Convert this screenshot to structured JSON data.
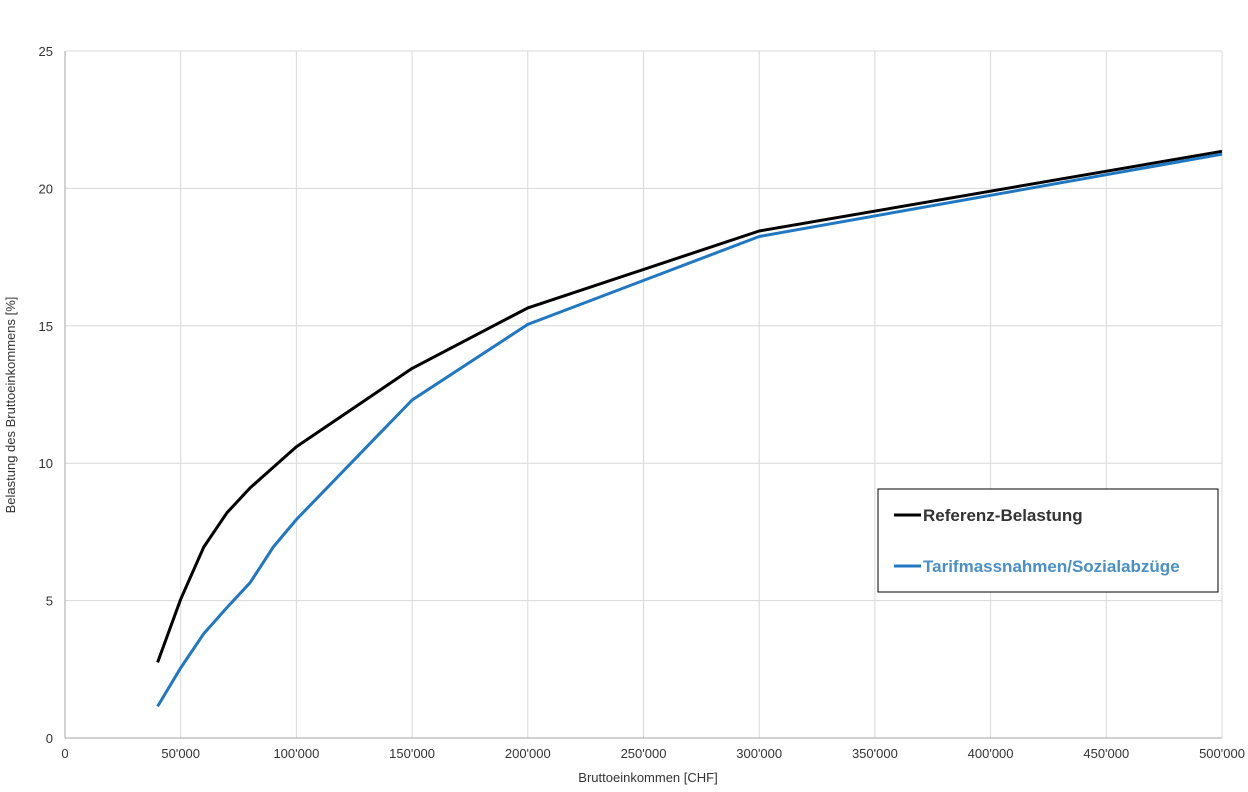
{
  "chart_data": {
    "type": "line",
    "xlabel": "Bruttoeinkommen [CHF]",
    "ylabel": "Belastung des Bruttoeinkommens [%]",
    "xlim": [
      0,
      500000
    ],
    "ylim": [
      0,
      25
    ],
    "x_ticks": [
      0,
      50000,
      100000,
      150000,
      200000,
      250000,
      300000,
      350000,
      400000,
      450000,
      500000
    ],
    "x_tick_labels": [
      "0",
      "50'000",
      "100'000",
      "150'000",
      "200'000",
      "250'000",
      "300'000",
      "350'000",
      "400'000",
      "450'000",
      "500'000"
    ],
    "y_ticks": [
      0,
      5,
      10,
      15,
      20,
      25
    ],
    "y_tick_labels": [
      "0",
      "5",
      "10",
      "15",
      "20",
      "25"
    ],
    "grid": true,
    "legend_position": "right",
    "series": [
      {
        "name": "Referenz-Belastung",
        "color": "#000000",
        "x": [
          40000,
          50000,
          60000,
          70000,
          80000,
          90000,
          100000,
          150000,
          200000,
          300000,
          500000
        ],
        "y": [
          2.75,
          5.05,
          6.95,
          8.2,
          9.1,
          9.85,
          10.6,
          13.45,
          15.65,
          18.45,
          21.35
        ]
      },
      {
        "name": "Tarifmassnahmen/Sozialabzüge",
        "color": "#1f78c1",
        "label_color": "#4a8fc6",
        "x": [
          40000,
          50000,
          60000,
          70000,
          80000,
          90000,
          100000,
          150000,
          200000,
          300000,
          500000
        ],
        "y": [
          1.15,
          2.55,
          3.8,
          4.75,
          5.65,
          6.95,
          7.95,
          12.3,
          15.05,
          18.25,
          21.25
        ]
      }
    ]
  }
}
